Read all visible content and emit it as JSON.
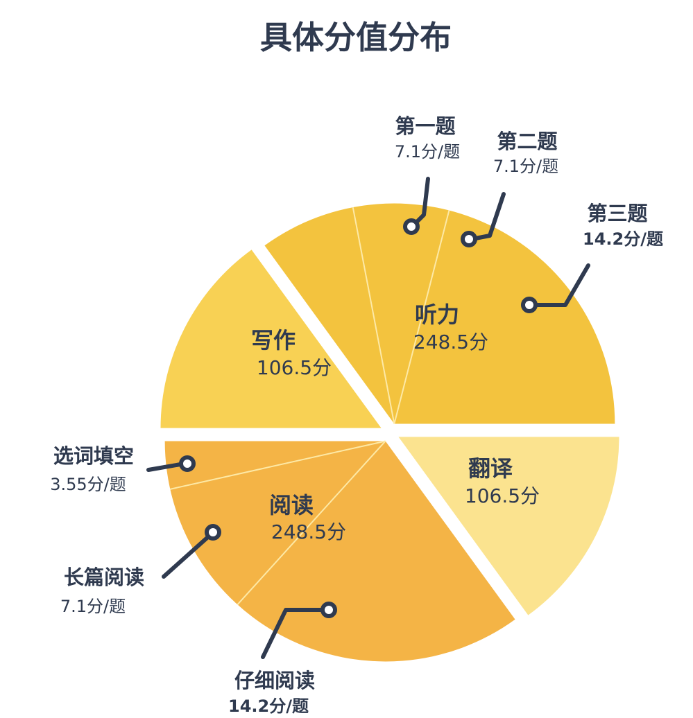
{
  "chart_data": {
    "type": "pie",
    "title": "具体分值分布",
    "slices": [
      {
        "name": "听力",
        "value_label": "248.5分",
        "value": 248.5,
        "color": "#f3c33e"
      },
      {
        "name": "翻译",
        "value_label": "106.5分",
        "value": 106.5,
        "color": "#fbe38f"
      },
      {
        "name": "阅读",
        "value_label": "248.5分",
        "value": 248.5,
        "color": "#f4b446"
      },
      {
        "name": "写作",
        "value_label": "106.5分",
        "value": 106.5,
        "color": "#f8d154"
      }
    ],
    "sub_items": [
      {
        "parent": "听力",
        "name": "第一题",
        "value_label": "7.1分/题",
        "per_item": 7.1
      },
      {
        "parent": "听力",
        "name": "第二题",
        "value_label": "7.1分/题",
        "per_item": 7.1
      },
      {
        "parent": "听力",
        "name": "第三题",
        "value_label": "14.2分/题",
        "per_item": 14.2
      },
      {
        "parent": "阅读",
        "name": "选词填空",
        "value_label": "3.55分/题",
        "per_item": 3.55
      },
      {
        "parent": "阅读",
        "name": "长篇阅读",
        "value_label": "7.1分/题",
        "per_item": 7.1
      },
      {
        "parent": "阅读",
        "name": "仔细阅读",
        "value_label": "14.2分/题",
        "per_item": 14.2
      }
    ],
    "colors": {
      "text": "#2f3a4f",
      "divider": "#fde9a6"
    }
  }
}
